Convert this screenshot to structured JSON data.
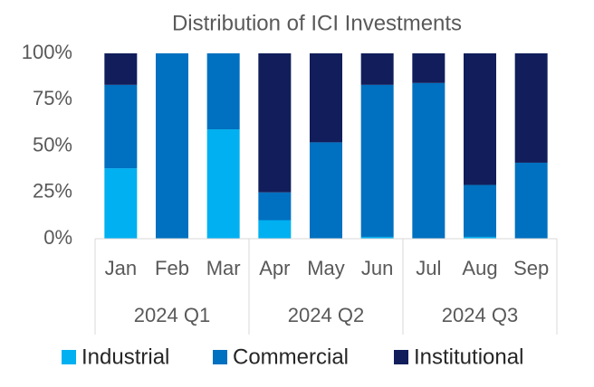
{
  "chart_data": {
    "type": "stacked-bar",
    "title": "Distribution of ICI Investments",
    "categories": [
      "Jan",
      "Feb",
      "Mar",
      "Apr",
      "May",
      "Jun",
      "Jul",
      "Aug",
      "Sep"
    ],
    "groups": [
      "2024 Q1",
      "2024 Q2",
      "2024 Q3"
    ],
    "series": [
      {
        "name": "Industrial",
        "color": "#00b0f0",
        "values": [
          38,
          0,
          59,
          10,
          0,
          1,
          0,
          1,
          0
        ]
      },
      {
        "name": "Commercial",
        "color": "#0070c0",
        "values": [
          45,
          100,
          41,
          15,
          52,
          82,
          84,
          28,
          41
        ]
      },
      {
        "name": "Institutional",
        "color": "#111e5b",
        "values": [
          17,
          0,
          0,
          75,
          48,
          17,
          16,
          71,
          59
        ]
      }
    ],
    "ylim": [
      0,
      100
    ],
    "yticks": [
      {
        "value": 0,
        "label": "0%"
      },
      {
        "value": 25,
        "label": "25%"
      },
      {
        "value": 50,
        "label": "50%"
      },
      {
        "value": 75,
        "label": "75%"
      },
      {
        "value": 100,
        "label": "100%"
      }
    ],
    "grid": false,
    "legend": "bottom"
  }
}
